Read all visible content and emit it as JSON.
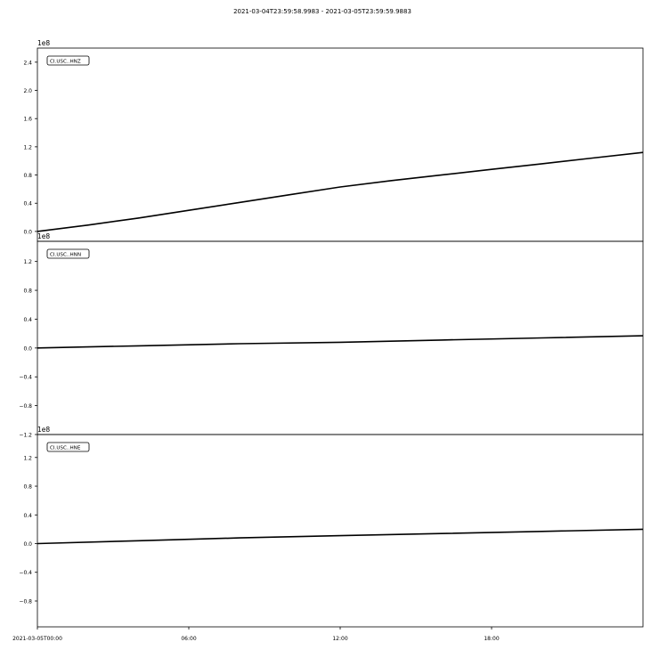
{
  "title": "2021-03-04T23:59:58.9983  -  2021-03-05T23:59:59.9883",
  "x_tick_labels": [
    "2021-03-05T00:00",
    "06:00",
    "12:00",
    "18:00"
  ],
  "chart_data": [
    {
      "type": "line",
      "label": "CI.USC..HNZ",
      "offset_text": "1e8",
      "yticks": [
        0.0,
        0.4,
        0.8,
        1.2,
        1.6,
        2.0,
        2.4
      ],
      "ylim": [
        -0.14,
        2.6
      ],
      "xlim_hours": [
        0,
        24
      ],
      "x_hours": [
        0,
        2,
        4,
        6,
        8,
        10,
        12,
        14,
        16,
        18,
        20,
        22,
        24
      ],
      "y": [
        0.0,
        0.09,
        0.19,
        0.3,
        0.41,
        0.52,
        0.63,
        0.72,
        0.8,
        0.88,
        0.96,
        1.04,
        1.12
      ]
    },
    {
      "type": "line",
      "label": "CI.USC..HNN",
      "offset_text": "1e8",
      "yticks": [
        -1.2,
        -0.8,
        -0.4,
        0.0,
        0.4,
        0.8,
        1.2
      ],
      "ylim": [
        -1.2,
        1.48
      ],
      "xlim_hours": [
        0,
        24
      ],
      "x_hours": [
        0,
        4,
        8,
        12,
        16,
        20,
        24
      ],
      "y": [
        0.0,
        0.03,
        0.06,
        0.08,
        0.11,
        0.14,
        0.17
      ]
    },
    {
      "type": "line",
      "label": "CI.USC..HNE",
      "offset_text": "1e8",
      "yticks": [
        -0.8,
        -0.4,
        0.0,
        0.4,
        0.8,
        1.2
      ],
      "ylim": [
        -1.16,
        1.52
      ],
      "xlim_hours": [
        0,
        24
      ],
      "x_hours": [
        0,
        4,
        8,
        12,
        16,
        20,
        24
      ],
      "y": [
        0.0,
        0.04,
        0.08,
        0.11,
        0.14,
        0.17,
        0.2
      ]
    }
  ]
}
